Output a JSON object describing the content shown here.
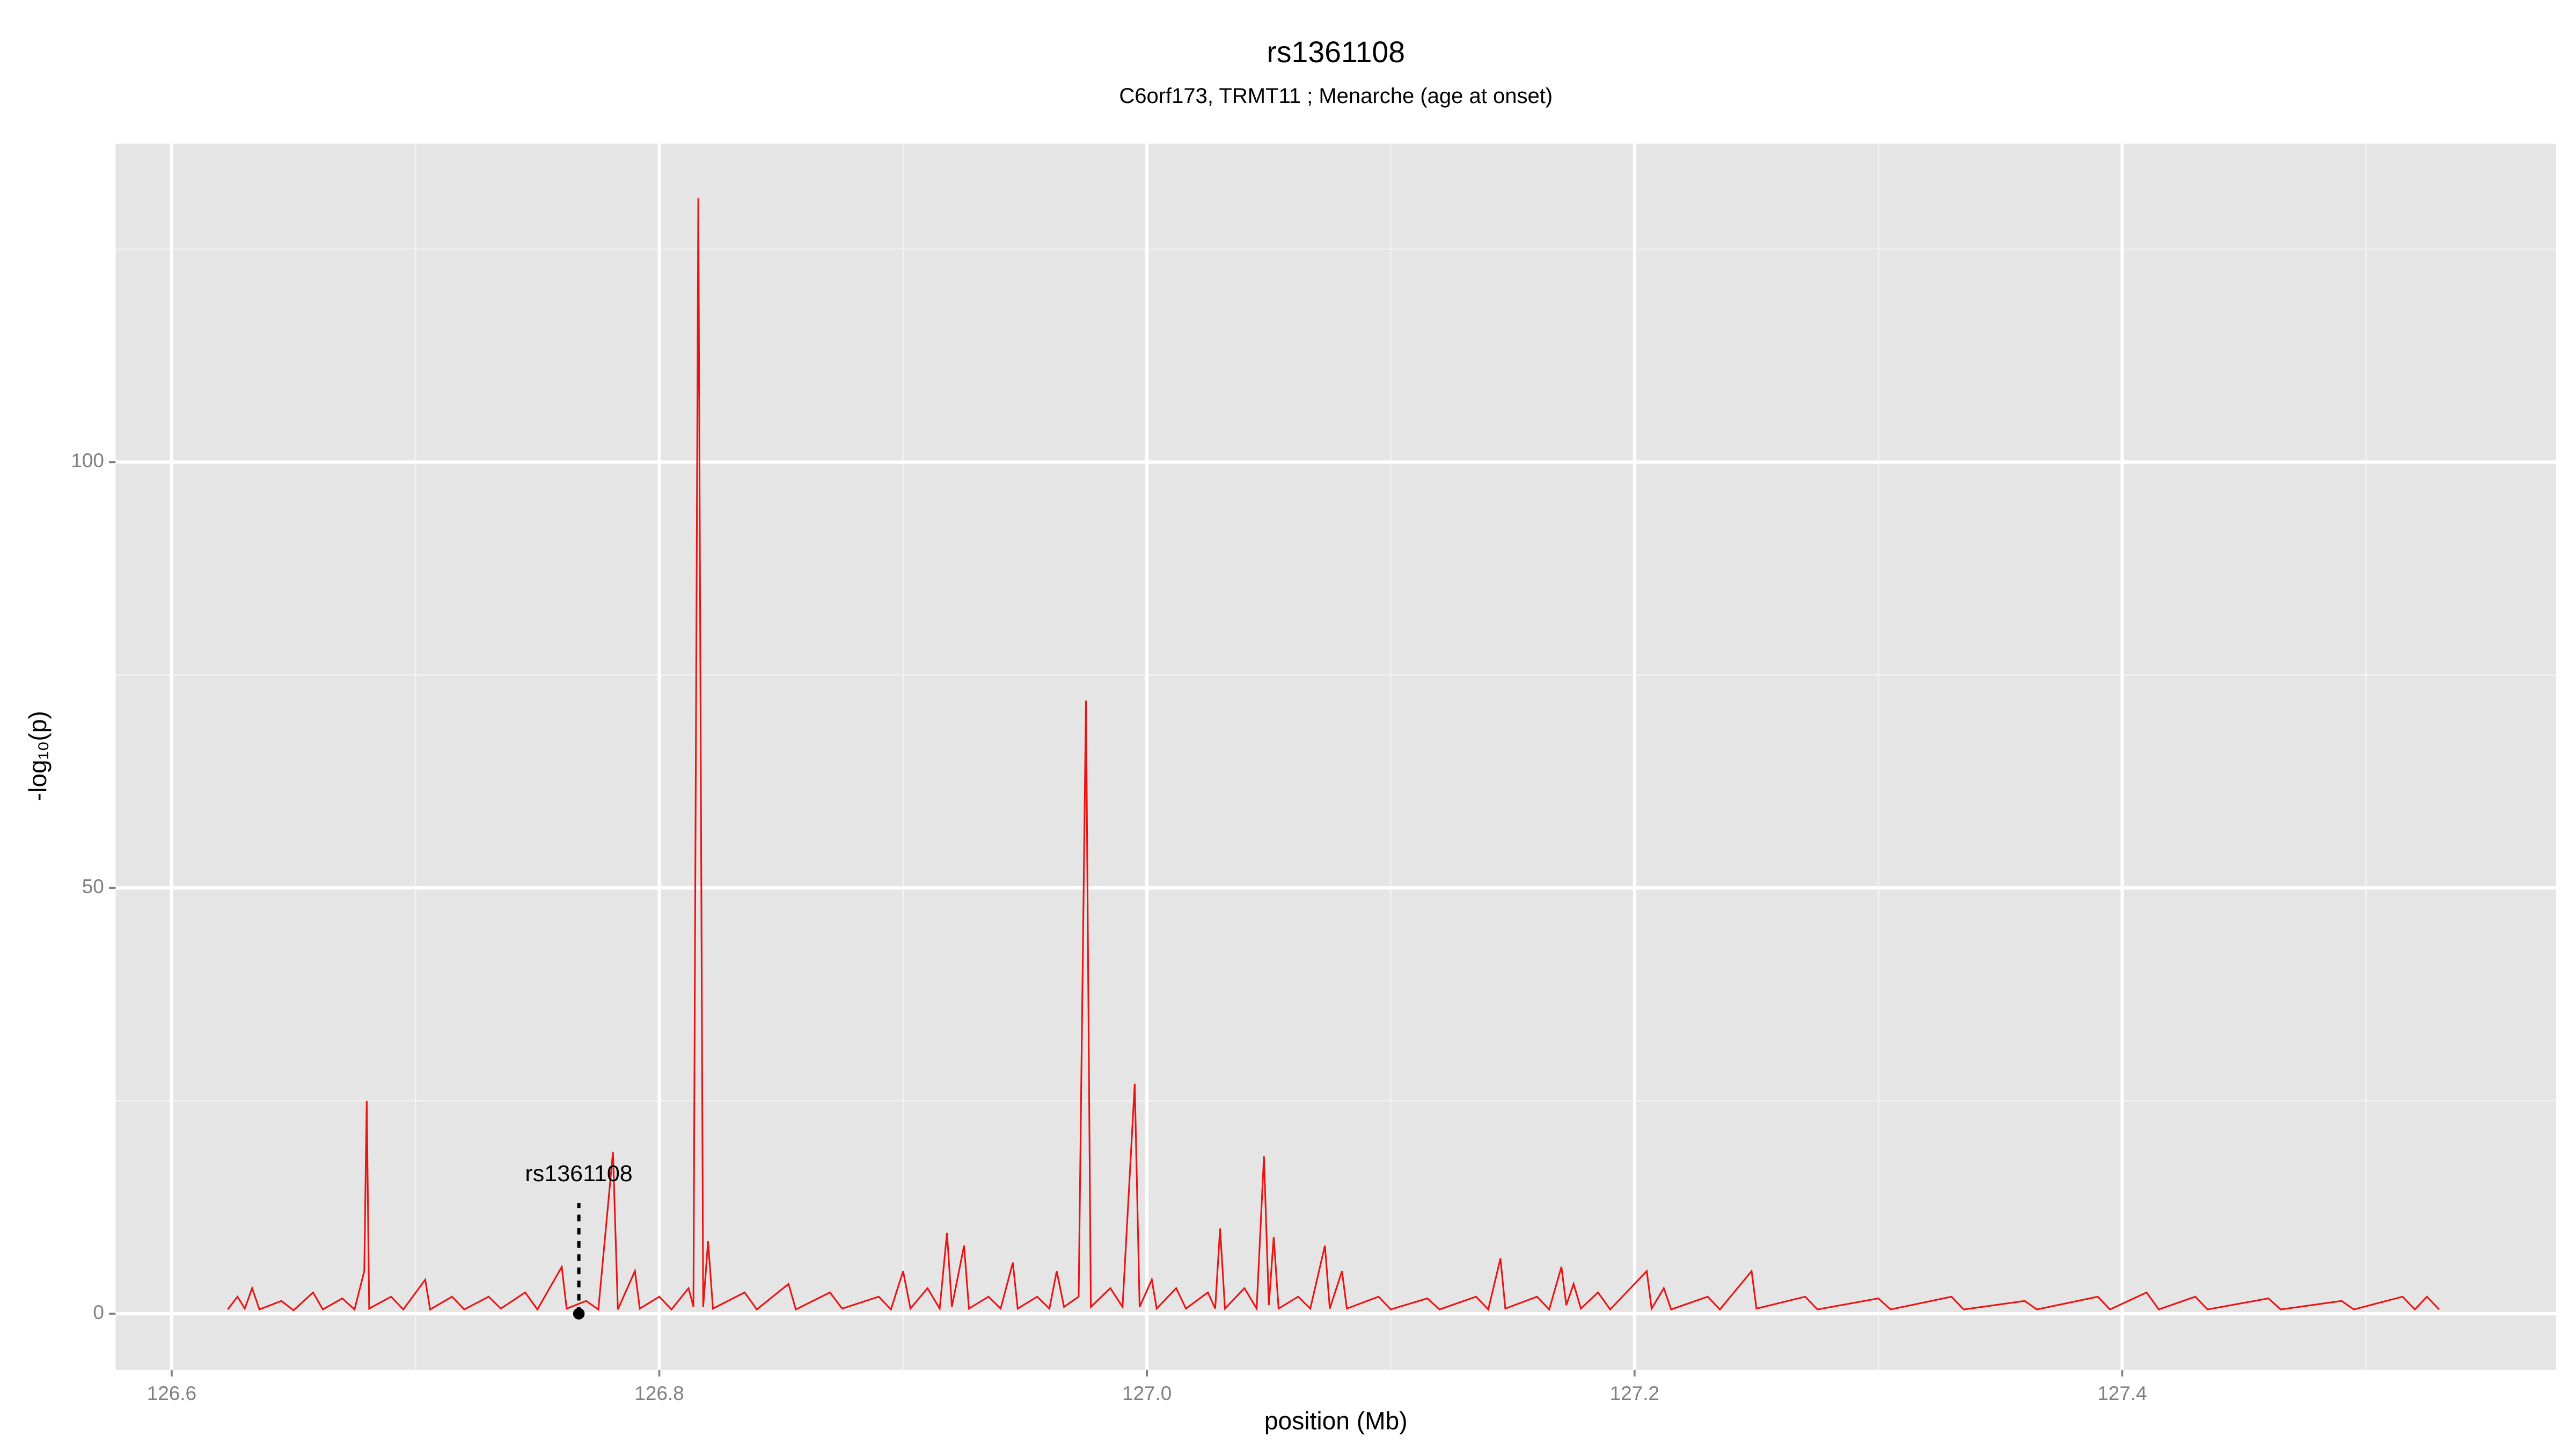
{
  "chart_data": {
    "type": "line",
    "title": "rs1361108",
    "subtitle": "C6orf173, TRMT11 ; Menarche (age at onset)",
    "xlabel": "position (Mb)",
    "ylabel": "-log₁₀(p)",
    "xlim": [
      126.577,
      127.578
    ],
    "ylim": [
      -6.6,
      137.4
    ],
    "xticks": [
      126.6,
      126.8,
      {
        "value": 127,
        "label": "127.0"
      },
      127.2,
      127.4
    ],
    "yticks": [
      0,
      50,
      100
    ],
    "xminorticks": [
      126.7,
      126.9,
      127.1,
      127.3,
      127.5
    ],
    "yminorticks": [
      25,
      75,
      125
    ],
    "grid": true,
    "series": [
      {
        "color": "#ee1111",
        "x": [
          126.623,
          126.627,
          126.63,
          126.633,
          126.636,
          126.645,
          126.65,
          126.658,
          126.662,
          126.67,
          126.675,
          126.679,
          126.68,
          126.681,
          126.69,
          126.695,
          126.704,
          126.706,
          126.715,
          126.72,
          126.73,
          126.735,
          126.745,
          126.75,
          126.76,
          126.762,
          126.77,
          126.775,
          126.781,
          126.783,
          126.79,
          126.792,
          126.8,
          126.805,
          126.812,
          126.814,
          126.816,
          126.818,
          126.82,
          126.822,
          126.835,
          126.84,
          126.853,
          126.856,
          126.87,
          126.875,
          126.89,
          126.895,
          126.9,
          126.903,
          126.91,
          126.915,
          126.918,
          126.92,
          126.925,
          126.927,
          126.935,
          126.94,
          126.945,
          126.947,
          126.955,
          126.96,
          126.963,
          126.966,
          126.972,
          126.975,
          126.977,
          126.985,
          126.99,
          126.995,
          126.997,
          127.002,
          127.004,
          127.012,
          127.016,
          127.025,
          127.028,
          127.03,
          127.032,
          127.04,
          127.045,
          127.048,
          127.05,
          127.052,
          127.054,
          127.062,
          127.067,
          127.073,
          127.075,
          127.08,
          127.082,
          127.095,
          127.1,
          127.115,
          127.12,
          127.135,
          127.14,
          127.145,
          127.147,
          127.16,
          127.165,
          127.17,
          127.172,
          127.175,
          127.178,
          127.185,
          127.19,
          127.205,
          127.207,
          127.212,
          127.215,
          127.23,
          127.235,
          127.248,
          127.25,
          127.27,
          127.275,
          127.3,
          127.305,
          127.33,
          127.335,
          127.36,
          127.365,
          127.39,
          127.395,
          127.41,
          127.415,
          127.43,
          127.435,
          127.46,
          127.465,
          127.49,
          127.495,
          127.515,
          127.52,
          127.525,
          127.53
        ],
        "values": [
          0.5,
          2,
          0.6,
          3,
          0.5,
          1.5,
          0.4,
          2.5,
          0.5,
          1.8,
          0.5,
          5,
          25,
          0.6,
          2,
          0.5,
          4,
          0.5,
          2,
          0.5,
          2,
          0.6,
          2.5,
          0.5,
          5.5,
          0.6,
          1.5,
          0.5,
          19,
          0.5,
          5,
          0.6,
          2,
          0.5,
          3,
          0.8,
          131,
          0.8,
          8.5,
          0.6,
          2.5,
          0.5,
          3.5,
          0.5,
          2.5,
          0.6,
          2,
          0.5,
          5,
          0.6,
          3,
          0.6,
          9.5,
          0.8,
          8,
          0.6,
          2,
          0.6,
          6,
          0.6,
          2,
          0.6,
          5,
          0.8,
          2,
          72,
          0.8,
          3,
          0.8,
          27,
          0.8,
          4,
          0.6,
          3,
          0.6,
          2.5,
          0.6,
          10,
          0.6,
          3,
          0.6,
          18.5,
          1,
          9,
          0.6,
          2,
          0.6,
          8,
          0.6,
          5,
          0.6,
          2,
          0.5,
          1.8,
          0.5,
          2,
          0.5,
          6.5,
          0.6,
          2,
          0.5,
          5.5,
          1,
          3.5,
          0.6,
          2.5,
          0.5,
          5,
          0.6,
          3,
          0.5,
          2,
          0.5,
          5,
          0.6,
          2,
          0.5,
          1.8,
          0.5,
          2,
          0.5,
          1.5,
          0.5,
          2,
          0.5,
          2.5,
          0.5,
          2,
          0.5,
          1.8,
          0.5,
          1.5,
          0.5,
          2,
          0.5,
          2,
          0.5
        ]
      }
    ],
    "annotation": {
      "label": "rs1361108",
      "x": 126.767,
      "y": 0
    }
  }
}
